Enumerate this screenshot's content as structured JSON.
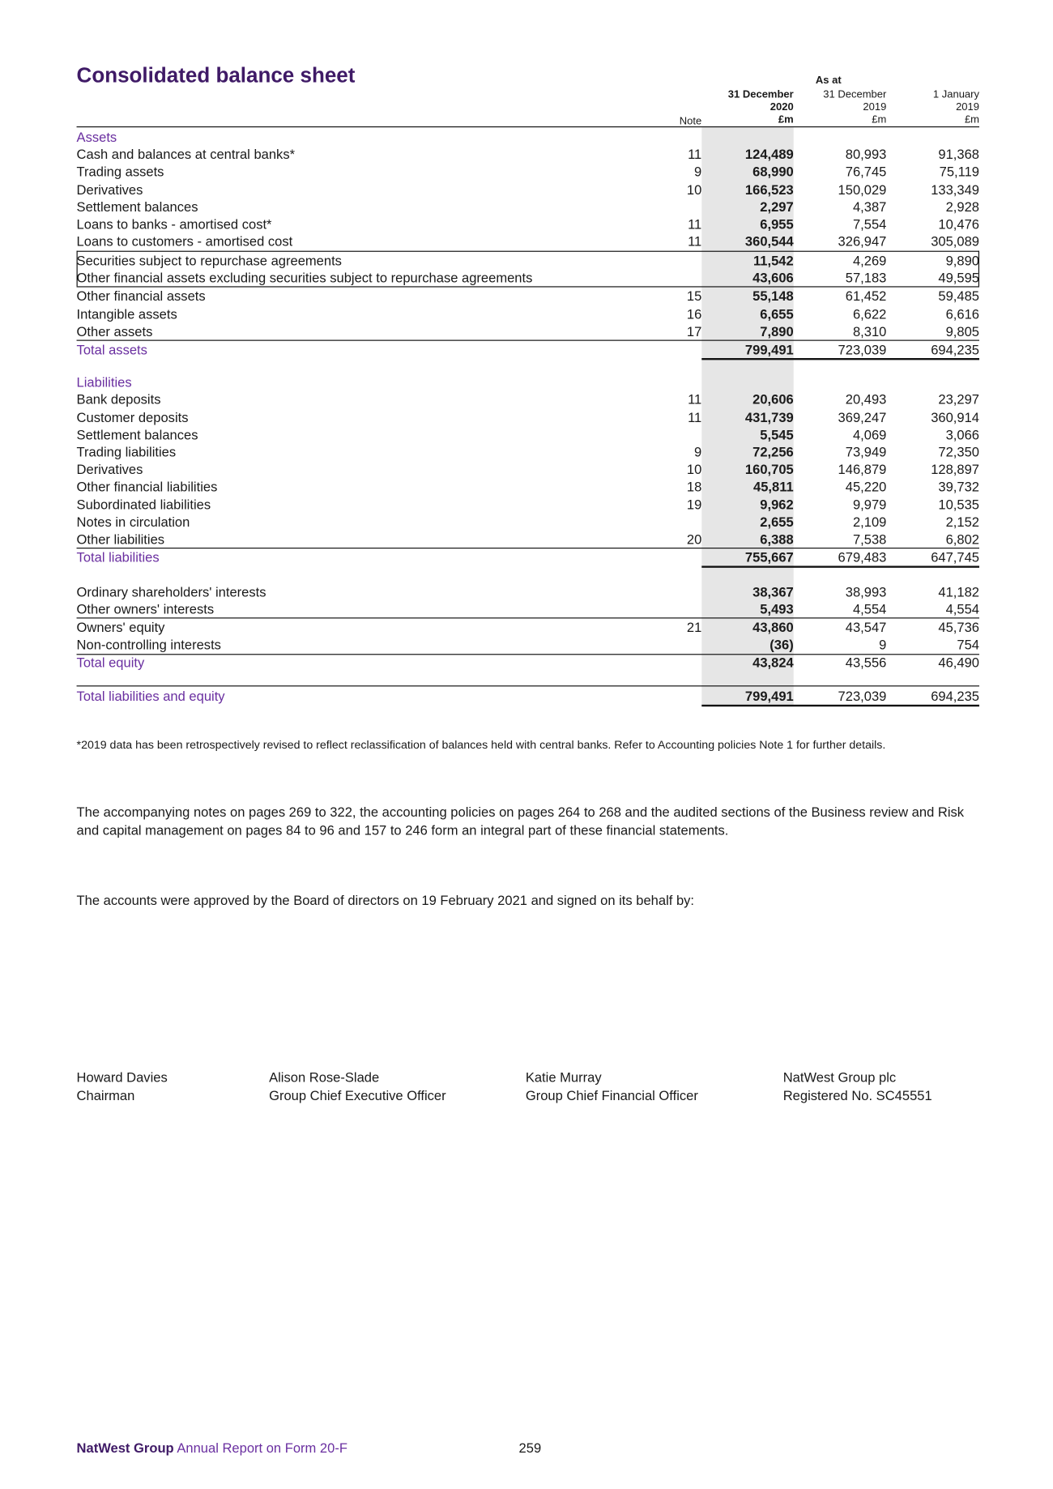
{
  "header": {
    "title": "Consolidated balance sheet",
    "as_at": "As at",
    "note_label": "Note",
    "columns": [
      {
        "date": "31 December",
        "year": "2020",
        "unit": "£m"
      },
      {
        "date": "31 December",
        "year": "2019",
        "unit": "£m"
      },
      {
        "date": "1 January",
        "year": "2019",
        "unit": "£m"
      }
    ]
  },
  "table": {
    "rows": [
      [
        "Assets",
        null,
        null,
        null,
        null
      ],
      [
        "Cash and balances at central banks*",
        "11",
        "124,489",
        "80,993",
        "91,368"
      ],
      [
        "Trading assets",
        "9",
        "68,990",
        "76,745",
        "75,119"
      ],
      [
        "Derivatives",
        "10",
        "166,523",
        "150,029",
        "133,349"
      ],
      [
        "Settlement balances",
        null,
        "2,297",
        "4,387",
        "2,928"
      ],
      [
        "Loans to banks - amortised cost*",
        "11",
        "6,955",
        "7,554",
        "10,476"
      ],
      [
        "Loans to customers - amortised cost",
        "11",
        "360,544",
        "326,947",
        "305,089"
      ],
      [
        "Securities subject to repurchase agreements",
        null,
        "11,542",
        "4,269",
        "9,890"
      ],
      [
        "Other financial assets excluding securities subject to repurchase agreements",
        null,
        "43,606",
        "57,183",
        "49,595"
      ],
      [
        "Other financial assets",
        "15",
        "55,148",
        "61,452",
        "59,485"
      ],
      [
        "Intangible assets",
        "16",
        "6,655",
        "6,622",
        "6,616"
      ],
      [
        "Other assets",
        "17",
        "7,890",
        "8,310",
        "9,805"
      ],
      [
        "Total assets",
        null,
        "799,491",
        "723,039",
        "694,235"
      ],
      [
        "Liabilities",
        null,
        null,
        null,
        null
      ],
      [
        "Bank deposits",
        "11",
        "20,606",
        "20,493",
        "23,297"
      ],
      [
        "Customer deposits",
        "11",
        "431,739",
        "369,247",
        "360,914"
      ],
      [
        "Settlement balances",
        null,
        "5,545",
        "4,069",
        "3,066"
      ],
      [
        "Trading liabilities",
        "9",
        "72,256",
        "73,949",
        "72,350"
      ],
      [
        "Derivatives",
        "10",
        "160,705",
        "146,879",
        "128,897"
      ],
      [
        "Other financial liabilities",
        "18",
        "45,811",
        "45,220",
        "39,732"
      ],
      [
        "Subordinated liabilities",
        "19",
        "9,962",
        "9,979",
        "10,535"
      ],
      [
        "Notes in circulation",
        null,
        "2,655",
        "2,109",
        "2,152"
      ],
      [
        "Other liabilities",
        "20",
        "6,388",
        "7,538",
        "6,802"
      ],
      [
        "Total liabilities",
        null,
        "755,667",
        "679,483",
        "647,745"
      ],
      [
        "Ordinary shareholders' interests",
        null,
        "38,367",
        "38,993",
        "41,182"
      ],
      [
        "Other owners' interests",
        null,
        "5,493",
        "4,554",
        "4,554"
      ],
      [
        "Owners' equity",
        "21",
        "43,860",
        "43,547",
        "45,736"
      ],
      [
        "Non-controlling interests",
        null,
        "(36)",
        "9",
        "754"
      ],
      [
        "Total equity",
        null,
        "43,824",
        "43,556",
        "46,490"
      ],
      [
        "Total liabilities and equity",
        null,
        "799,491",
        "723,039",
        "694,235"
      ]
    ]
  },
  "footnote": "*2019 data has been retrospectively revised to reflect reclassification of balances held with central banks. Refer to Accounting policies Note 1 for further details.",
  "paragraph": "The accompanying notes on pages 269 to 322, the accounting policies on pages 264 to 268 and the audited sections of the Business review and Risk and capital management on pages 84 to 96 and 157 to 246 form an integral part of these financial statements.",
  "approval": "The accounts were approved by the Board of directors on 19 February 2021 and signed on its behalf by:",
  "signatories": [
    {
      "name": "Howard Davies",
      "title": "Chairman"
    },
    {
      "name": "Alison Rose-Slade",
      "title": "Group Chief Executive Officer"
    },
    {
      "name": "Katie Murray",
      "title": "Group Chief Financial Officer"
    },
    {
      "name": "NatWest Group plc",
      "title": "Registered No. SC45551"
    }
  ],
  "footer": {
    "brand": "NatWest Group",
    "report": "Annual Report on Form 20-F",
    "page": "259"
  }
}
